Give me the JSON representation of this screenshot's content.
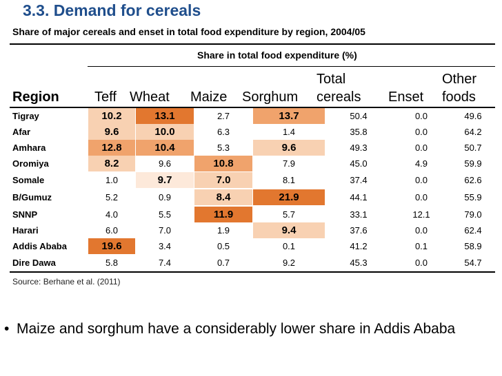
{
  "slide": {
    "title": "3.3. Demand for cereals",
    "subtitle": "Share of major cereals and enset in total food expenditure by region, 2004/05",
    "group_header": "Share in total food expenditure (%)",
    "source": "Source: Berhane et al. (2011)",
    "bullet_symbol": "•",
    "bullet_text": "Maize and sorghum have a considerably lower share in Addis Ababa"
  },
  "colors": {
    "title": "#1f4e8c",
    "highlight_strong": "#e2772f",
    "highlight_medium": "#f0a36c",
    "highlight_light": "#f8d1b2",
    "highlight_faint": "#fde9da"
  },
  "table": {
    "headers": {
      "region": "Region",
      "teff": "Teff",
      "wheat": "Wheat",
      "maize": "Maize",
      "sorghum": "Sorghum",
      "total_1": "Total",
      "total_2": "cereals",
      "enset": "Enset",
      "other_1": "Other",
      "other_2": "foods"
    },
    "rows": [
      {
        "region": "Tigray",
        "teff": "10.2",
        "wheat": "13.1",
        "maize": "2.7",
        "sorghum": "13.7",
        "total": "50.4",
        "enset": "0.0",
        "other": "49.6"
      },
      {
        "region": "Afar",
        "teff": "9.6",
        "wheat": "10.0",
        "maize": "6.3",
        "sorghum": "1.4",
        "total": "35.8",
        "enset": "0.0",
        "other": "64.2"
      },
      {
        "region": "Amhara",
        "teff": "12.8",
        "wheat": "10.4",
        "maize": "5.3",
        "sorghum": "9.6",
        "total": "49.3",
        "enset": "0.0",
        "other": "50.7"
      },
      {
        "region": "Oromiya",
        "teff": "8.2",
        "wheat": "9.6",
        "maize": "10.8",
        "sorghum": "7.9",
        "total": "45.0",
        "enset": "4.9",
        "other": "59.9"
      },
      {
        "region": "Somale",
        "teff": "1.0",
        "wheat": "9.7",
        "maize": "7.0",
        "sorghum": "8.1",
        "total": "37.4",
        "enset": "0.0",
        "other": "62.6"
      },
      {
        "region": "B/Gumuz",
        "teff": "5.2",
        "wheat": "0.9",
        "maize": "8.4",
        "sorghum": "21.9",
        "total": "44.1",
        "enset": "0.0",
        "other": "55.9"
      },
      {
        "region": "SNNP",
        "teff": "4.0",
        "wheat": "5.5",
        "maize": "11.9",
        "sorghum": "5.7",
        "total": "33.1",
        "enset": "12.1",
        "other": "79.0"
      },
      {
        "region": "Harari",
        "teff": "6.0",
        "wheat": "7.0",
        "maize": "1.9",
        "sorghum": "9.4",
        "total": "37.6",
        "enset": "0.0",
        "other": "62.4"
      },
      {
        "region": "Addis Ababa",
        "teff": "19.6",
        "wheat": "3.4",
        "maize": "0.5",
        "sorghum": "0.1",
        "total": "41.2",
        "enset": "0.1",
        "other": "58.9"
      },
      {
        "region": "Dire Dawa",
        "teff": "5.8",
        "wheat": "7.4",
        "maize": "0.7",
        "sorghum": "9.2",
        "total": "45.3",
        "enset": "0.0",
        "other": "54.7"
      }
    ]
  }
}
